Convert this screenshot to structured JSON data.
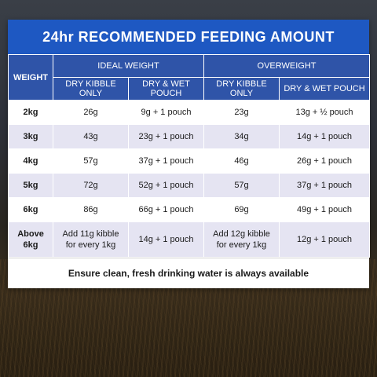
{
  "title": "24hr RECOMMENDED FEEDING AMOUNT",
  "headers": {
    "weight": "WEIGHT",
    "ideal_weight": "IDEAL WEIGHT",
    "overweight": "OVERWEIGHT",
    "dry_kibble_only": "DRY KIBBLE ONLY",
    "dry_wet_pouch": "DRY & WET POUCH"
  },
  "rows": [
    {
      "weight": "2kg",
      "ideal_dry": "26g",
      "ideal_wet": "9g + 1 pouch",
      "over_dry": "23g",
      "over_wet": "13g + ½ pouch"
    },
    {
      "weight": "3kg",
      "ideal_dry": "43g",
      "ideal_wet": "23g + 1 pouch",
      "over_dry": "34g",
      "over_wet": "14g + 1 pouch"
    },
    {
      "weight": "4kg",
      "ideal_dry": "57g",
      "ideal_wet": "37g + 1 pouch",
      "over_dry": "46g",
      "over_wet": "26g + 1 pouch"
    },
    {
      "weight": "5kg",
      "ideal_dry": "72g",
      "ideal_wet": "52g + 1 pouch",
      "over_dry": "57g",
      "over_wet": "37g + 1 pouch"
    },
    {
      "weight": "6kg",
      "ideal_dry": "86g",
      "ideal_wet": "66g + 1 pouch",
      "over_dry": "69g",
      "over_wet": "49g + 1 pouch"
    }
  ],
  "last_row": {
    "weight_line1": "Above",
    "weight_line2": "6kg",
    "ideal_dry_line1": "Add 11g kibble",
    "ideal_dry_line2": "for every 1kg",
    "ideal_wet": "14g + 1 pouch",
    "over_dry_line1": "Add 12g kibble",
    "over_dry_line2": "for every 1kg",
    "over_wet": "12g + 1 pouch"
  },
  "note": "Ensure clean, fresh drinking water is always available"
}
